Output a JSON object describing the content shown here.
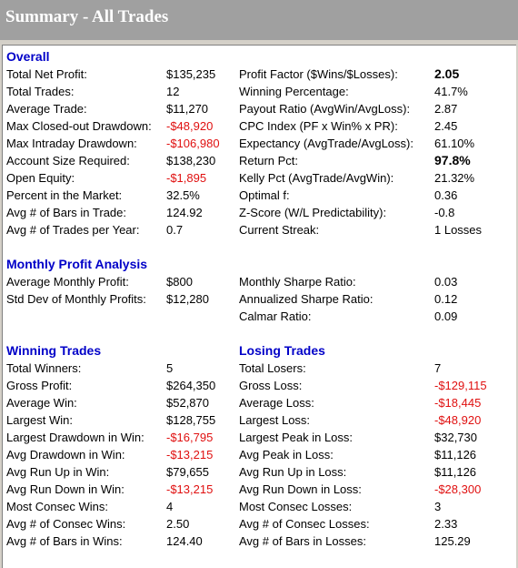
{
  "window": {
    "title": "Summary - All Trades"
  },
  "colors": {
    "negative": "#e01010",
    "heading": "#0000c8",
    "titlebar": "#a0a0a0"
  },
  "overall": {
    "heading": "Overall",
    "left": [
      {
        "label": "Total Net Profit:",
        "value": "$135,235",
        "neg": false
      },
      {
        "label": "Total Trades:",
        "value": "12",
        "neg": false
      },
      {
        "label": "Average Trade:",
        "value": "$11,270",
        "neg": false
      },
      {
        "label": "Max Closed-out Drawdown:",
        "value": "-$48,920",
        "neg": true
      },
      {
        "label": "Max Intraday Drawdown:",
        "value": "-$106,980",
        "neg": true
      },
      {
        "label": "Account Size Required:",
        "value": "$138,230",
        "neg": false
      },
      {
        "label": "Open Equity:",
        "value": "-$1,895",
        "neg": true
      },
      {
        "label": "Percent in the Market:",
        "value": "32.5%",
        "neg": false
      },
      {
        "label": "Avg # of Bars in Trade:",
        "value": "124.92",
        "neg": false
      },
      {
        "label": "Avg # of Trades per Year:",
        "value": "0.7",
        "neg": false
      }
    ],
    "right": [
      {
        "label": "Profit Factor ($Wins/$Losses):",
        "value": "2.05",
        "bold": true
      },
      {
        "label": "Winning Percentage:",
        "value": "41.7%"
      },
      {
        "label": "Payout Ratio (AvgWin/AvgLoss):",
        "value": "2.87"
      },
      {
        "label": "CPC Index (PF x Win% x PR):",
        "value": "2.45"
      },
      {
        "label": "Expectancy (AvgTrade/AvgLoss):",
        "value": "61.10%"
      },
      {
        "label": "Return Pct:",
        "value": "97.8%",
        "bold": true
      },
      {
        "label": "Kelly Pct (AvgTrade/AvgWin):",
        "value": "21.32%"
      },
      {
        "label": "Optimal f:",
        "value": "0.36"
      },
      {
        "label": "Z-Score (W/L Predictability):",
        "value": "-0.8"
      },
      {
        "label": "Current Streak:",
        "value": "1 Losses"
      }
    ]
  },
  "monthly": {
    "heading": "Monthly Profit Analysis",
    "left": [
      {
        "label": "Average Monthly Profit:",
        "value": "$800"
      },
      {
        "label": "Std Dev of Monthly Profits:",
        "value": "$12,280"
      }
    ],
    "right": [
      {
        "label": "Monthly Sharpe Ratio:",
        "value": "0.03"
      },
      {
        "label": "Annualized Sharpe Ratio:",
        "value": "0.12"
      },
      {
        "label": "Calmar Ratio:",
        "value": "0.09"
      }
    ]
  },
  "winning": {
    "heading": "Winning Trades",
    "rows": [
      {
        "label": "Total Winners:",
        "value": "5",
        "neg": false
      },
      {
        "label": "Gross Profit:",
        "value": "$264,350",
        "neg": false
      },
      {
        "label": "Average Win:",
        "value": "$52,870",
        "neg": false
      },
      {
        "label": "Largest Win:",
        "value": "$128,755",
        "neg": false
      },
      {
        "label": "Largest Drawdown in Win:",
        "value": "-$16,795",
        "neg": true
      },
      {
        "label": "Avg Drawdown in Win:",
        "value": "-$13,215",
        "neg": true
      },
      {
        "label": "Avg Run Up in Win:",
        "value": "$79,655",
        "neg": false
      },
      {
        "label": "Avg Run Down in Win:",
        "value": "-$13,215",
        "neg": true
      },
      {
        "label": "Most Consec Wins:",
        "value": "4",
        "neg": false
      },
      {
        "label": "Avg # of Consec Wins:",
        "value": "2.50",
        "neg": false
      },
      {
        "label": "Avg # of Bars in Wins:",
        "value": "124.40",
        "neg": false
      }
    ]
  },
  "losing": {
    "heading": "Losing Trades",
    "rows": [
      {
        "label": "Total Losers:",
        "value": "7",
        "neg": false
      },
      {
        "label": "Gross Loss:",
        "value": "-$129,115",
        "neg": true
      },
      {
        "label": "Average Loss:",
        "value": "-$18,445",
        "neg": true
      },
      {
        "label": "Largest Loss:",
        "value": "-$48,920",
        "neg": true
      },
      {
        "label": "Largest Peak in Loss:",
        "value": "$32,730",
        "neg": false
      },
      {
        "label": "Avg Peak in Loss:",
        "value": "$11,126",
        "neg": false
      },
      {
        "label": "Avg Run Up in Loss:",
        "value": "$11,126",
        "neg": false
      },
      {
        "label": "Avg Run Down in Loss:",
        "value": "-$28,300",
        "neg": true
      },
      {
        "label": "Most Consec Losses:",
        "value": "3",
        "neg": false
      },
      {
        "label": "Avg # of Consec Losses:",
        "value": "2.33",
        "neg": false
      },
      {
        "label": "Avg # of Bars in Losses:",
        "value": "125.29",
        "neg": false
      }
    ]
  }
}
